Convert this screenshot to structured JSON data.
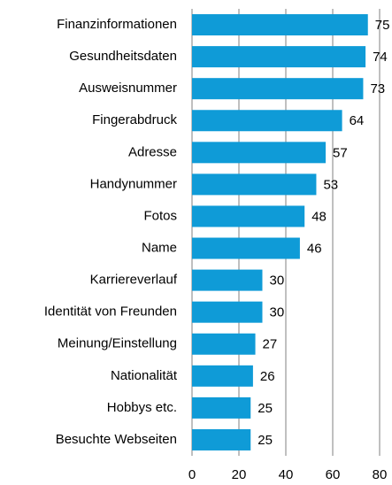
{
  "chart_data": {
    "type": "bar",
    "orientation": "horizontal",
    "categories": [
      "Finanzinformationen",
      "Gesundheitsdaten",
      "Ausweisnummer",
      "Fingerabdruck",
      "Adresse",
      "Handynummer",
      "Fotos",
      "Name",
      "Karriereverlauf",
      "Identität von Freunden",
      "Meinung/Einstellung",
      "Nationalität",
      "Hobbys etc.",
      "Besuchte Webseiten"
    ],
    "values": [
      75,
      74,
      73,
      64,
      57,
      53,
      48,
      46,
      30,
      30,
      27,
      26,
      25,
      25
    ],
    "color": "#0f9bd7",
    "xlim": [
      0,
      80
    ],
    "xticks": [
      0,
      20,
      40,
      60,
      80
    ],
    "grid": true
  }
}
